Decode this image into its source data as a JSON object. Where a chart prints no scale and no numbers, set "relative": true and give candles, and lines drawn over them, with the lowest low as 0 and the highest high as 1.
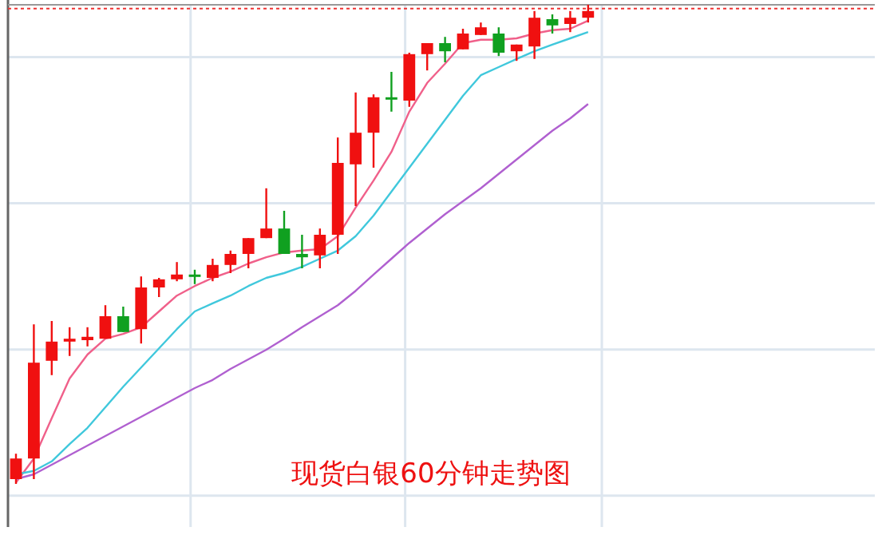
{
  "chart_data": {
    "type": "candlestick",
    "title": "现货白银60分钟走势图",
    "relative": true,
    "grid": true,
    "categories": [
      null,
      null,
      null,
      null,
      null,
      null,
      null,
      null,
      null,
      null,
      null,
      null,
      null,
      null,
      null,
      null,
      null,
      null,
      null,
      null,
      null,
      null,
      null,
      null,
      null,
      null,
      null,
      null,
      null,
      null,
      null,
      null,
      null
    ],
    "ohlc": [
      [
        0.01,
        0.063,
        0,
        0.053
      ],
      [
        0.053,
        0.333,
        0.01,
        0.253
      ],
      [
        0.257,
        0.34,
        0.227,
        0.297
      ],
      [
        0.297,
        0.327,
        0.267,
        0.303
      ],
      [
        0.3,
        0.327,
        0.287,
        0.307
      ],
      [
        0.303,
        0.373,
        0.303,
        0.35
      ],
      [
        0.35,
        0.37,
        0.317,
        0.317
      ],
      [
        0.323,
        0.433,
        0.293,
        0.41
      ],
      [
        0.41,
        0.43,
        0.39,
        0.427
      ],
      [
        0.427,
        0.463,
        0.423,
        0.437
      ],
      [
        0.437,
        0.447,
        0.417,
        0.433
      ],
      [
        0.43,
        0.47,
        0.423,
        0.457
      ],
      [
        0.457,
        0.487,
        0.44,
        0.48
      ],
      [
        0.48,
        0.513,
        0.45,
        0.513
      ],
      [
        0.513,
        0.617,
        0.513,
        0.533
      ],
      [
        0.533,
        0.57,
        0.48,
        0.48
      ],
      [
        0.48,
        0.52,
        0.45,
        0.473
      ],
      [
        0.477,
        0.533,
        0.45,
        0.52
      ],
      [
        0.52,
        0.723,
        0.48,
        0.67
      ],
      [
        0.667,
        0.817,
        0.58,
        0.733
      ],
      [
        0.733,
        0.813,
        0.66,
        0.807
      ],
      [
        0.807,
        0.86,
        0.777,
        0.803
      ],
      [
        0.8,
        0.9,
        0.787,
        0.897
      ],
      [
        0.897,
        0.92,
        0.863,
        0.92
      ],
      [
        0.92,
        0.933,
        0.88,
        0.903
      ],
      [
        0.907,
        0.95,
        0.907,
        0.94
      ],
      [
        0.937,
        0.963,
        0.937,
        0.953
      ],
      [
        0.94,
        0.953,
        0.893,
        0.9
      ],
      [
        0.903,
        0.917,
        0.883,
        0.917
      ],
      [
        0.913,
        0.987,
        0.887,
        0.973
      ],
      [
        0.97,
        0.98,
        0.94,
        0.957
      ],
      [
        0.96,
        0.987,
        0.943,
        0.973
      ],
      [
        0.973,
        1.0,
        0.963,
        0.987
      ]
    ],
    "colors": [
      "#f01010",
      "#f01010",
      "#f01010",
      "#f01010",
      "#f01010",
      "#f01010",
      "#10a020",
      "#f01010",
      "#f01010",
      "#f01010",
      "#10a020",
      "#f01010",
      "#f01010",
      "#f01010",
      "#f01010",
      "#10a020",
      "#10a020",
      "#f01010",
      "#f01010",
      "#f01010",
      "#f01010",
      "#10a020",
      "#f01010",
      "#f01010",
      "#10a020",
      "#f01010",
      "#f01010",
      "#10a020",
      "#f01010",
      "#f01010",
      "#10a020",
      "#f01010",
      "#f01010"
    ],
    "series": [
      {
        "type": "line",
        "color": "#f0608a",
        "values": [
          0.003,
          0.053,
          0.137,
          0.22,
          0.27,
          0.303,
          0.313,
          0.327,
          0.36,
          0.393,
          0.413,
          0.43,
          0.443,
          0.46,
          0.473,
          0.483,
          0.487,
          0.49,
          0.517,
          0.577,
          0.633,
          0.693,
          0.777,
          0.837,
          0.877,
          0.92,
          0.927,
          0.927,
          0.93,
          0.94,
          0.947,
          0.95,
          0.967
        ]
      },
      {
        "type": "line",
        "color": "#40c8dc",
        "values": [
          0.02,
          0.027,
          0.047,
          0.083,
          0.117,
          0.16,
          0.203,
          0.243,
          0.283,
          0.323,
          0.36,
          0.377,
          0.393,
          0.413,
          0.43,
          0.44,
          0.453,
          0.47,
          0.487,
          0.517,
          0.56,
          0.61,
          0.66,
          0.71,
          0.76,
          0.81,
          0.853,
          0.87,
          0.887,
          0.903,
          0.917,
          0.93,
          0.943
        ]
      },
      {
        "type": "line",
        "color": "#b060d0",
        "values": [
          0.01,
          0.02,
          0.04,
          0.06,
          0.08,
          0.1,
          0.12,
          0.14,
          0.16,
          0.18,
          0.2,
          0.217,
          0.24,
          0.26,
          0.28,
          0.303,
          0.327,
          0.35,
          0.373,
          0.403,
          0.437,
          0.47,
          0.503,
          0.533,
          0.563,
          0.59,
          0.617,
          0.647,
          0.677,
          0.707,
          0.737,
          0.763,
          0.793
        ]
      }
    ],
    "ref_lines": [
      {
        "axis": "y",
        "value": 0.992,
        "color": "#ee3333",
        "line_style": "dotted"
      }
    ]
  }
}
